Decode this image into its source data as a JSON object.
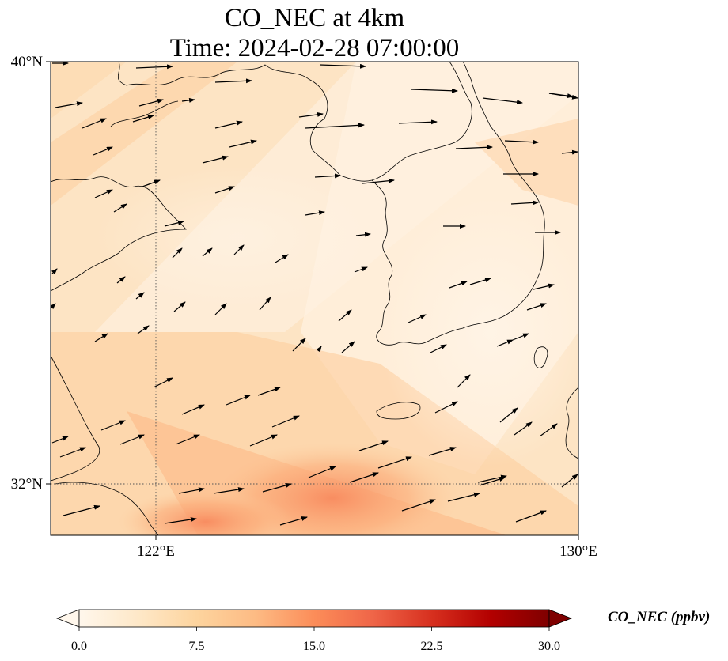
{
  "title": {
    "line1": "CO_NEC at 4km",
    "line2": "Time: 2024-02-28 07:00:00"
  },
  "axes": {
    "y_ticks": [
      "40°N",
      "32°N"
    ],
    "x_ticks": [
      "122°E",
      "130°E"
    ],
    "lon_range": [
      120,
      130
    ],
    "lat_range": [
      31,
      40
    ]
  },
  "colorbar": {
    "label": "CO_NEC (ppbv)",
    "ticks": [
      "0.0",
      "7.5",
      "15.0",
      "22.5",
      "30.0"
    ],
    "range": [
      0,
      30
    ],
    "colormap": "OrRd",
    "extend": "both",
    "colors": [
      "#fff7ec",
      "#fee8c8",
      "#fdd49e",
      "#fdbb84",
      "#fc8d59",
      "#ef6548",
      "#d7301f",
      "#b30000",
      "#7f0000"
    ]
  },
  "map": {
    "land_outline_color": "#000000",
    "gridline_style": "dotted",
    "background_color": "#fde3c2"
  }
}
